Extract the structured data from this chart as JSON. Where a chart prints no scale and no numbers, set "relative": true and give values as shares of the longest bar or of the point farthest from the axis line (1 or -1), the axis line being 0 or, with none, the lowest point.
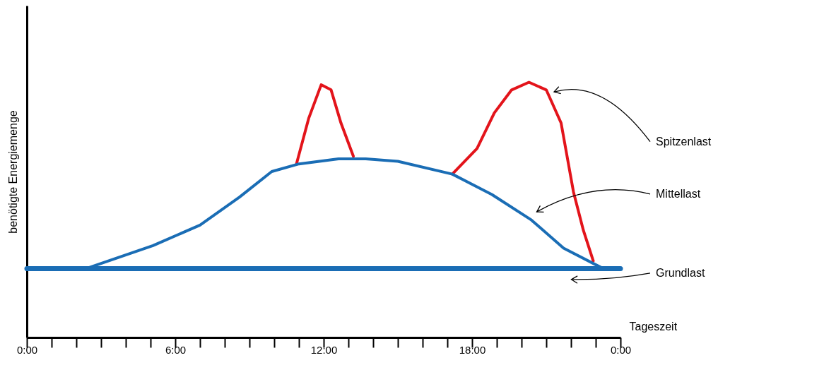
{
  "chart_data": {
    "type": "line",
    "relative": true,
    "xlabel": "Tageszeit",
    "ylabel": "benötigte Energiemenge",
    "xlim": [
      0,
      24
    ],
    "xticks": [
      {
        "value": 0,
        "label": "0:00"
      },
      {
        "value": 1,
        "label": null
      },
      {
        "value": 2,
        "label": null
      },
      {
        "value": 3,
        "label": null
      },
      {
        "value": 4,
        "label": null
      },
      {
        "value": 5,
        "label": null
      },
      {
        "value": 6,
        "label": "6:00"
      },
      {
        "value": 7,
        "label": null
      },
      {
        "value": 8,
        "label": null
      },
      {
        "value": 9,
        "label": null
      },
      {
        "value": 10,
        "label": null
      },
      {
        "value": 11,
        "label": null
      },
      {
        "value": 12,
        "label": "12:00"
      },
      {
        "value": 13,
        "label": null
      },
      {
        "value": 14,
        "label": null
      },
      {
        "value": 15,
        "label": null
      },
      {
        "value": 16,
        "label": null
      },
      {
        "value": 17,
        "label": null
      },
      {
        "value": 18,
        "label": "18:00"
      },
      {
        "value": 19,
        "label": null
      },
      {
        "value": 20,
        "label": null
      },
      {
        "value": 21,
        "label": null
      },
      {
        "value": 22,
        "label": null
      },
      {
        "value": 23,
        "label": null
      },
      {
        "value": 24,
        "label": "0:00"
      }
    ],
    "marker": "none",
    "line_style": "solid",
    "series": [
      {
        "name": "Spitzenlast",
        "color": "#e3141b",
        "x": [
          10.9,
          11.4,
          11.9,
          12.3,
          12.7,
          13.2,
          15,
          17.2,
          18.2,
          18.9,
          19.6,
          20.3,
          21.0,
          21.6,
          22.1,
          22.5,
          22.9
        ],
        "values": [
          0.68,
          0.86,
          0.99,
          0.97,
          0.84,
          0.71,
          null,
          0.64,
          0.74,
          0.88,
          0.97,
          1.0,
          0.97,
          0.84,
          0.57,
          0.42,
          0.3
        ]
      },
      {
        "name": "Mittellast",
        "color": "#1a6db5",
        "x": [
          2.4,
          5.1,
          7.0,
          8.6,
          9.9,
          11.0,
          12.6,
          13.7,
          15.0,
          17.2,
          18.8,
          20.4,
          21.7,
          23.3
        ],
        "values": [
          0.27,
          0.36,
          0.44,
          0.55,
          0.65,
          0.68,
          0.7,
          0.7,
          0.69,
          0.64,
          0.56,
          0.46,
          0.35,
          0.27
        ]
      },
      {
        "name": "Grundlast",
        "color": "#1a6db5",
        "x": [
          0,
          24
        ],
        "values": [
          0.27,
          0.27
        ]
      }
    ]
  }
}
